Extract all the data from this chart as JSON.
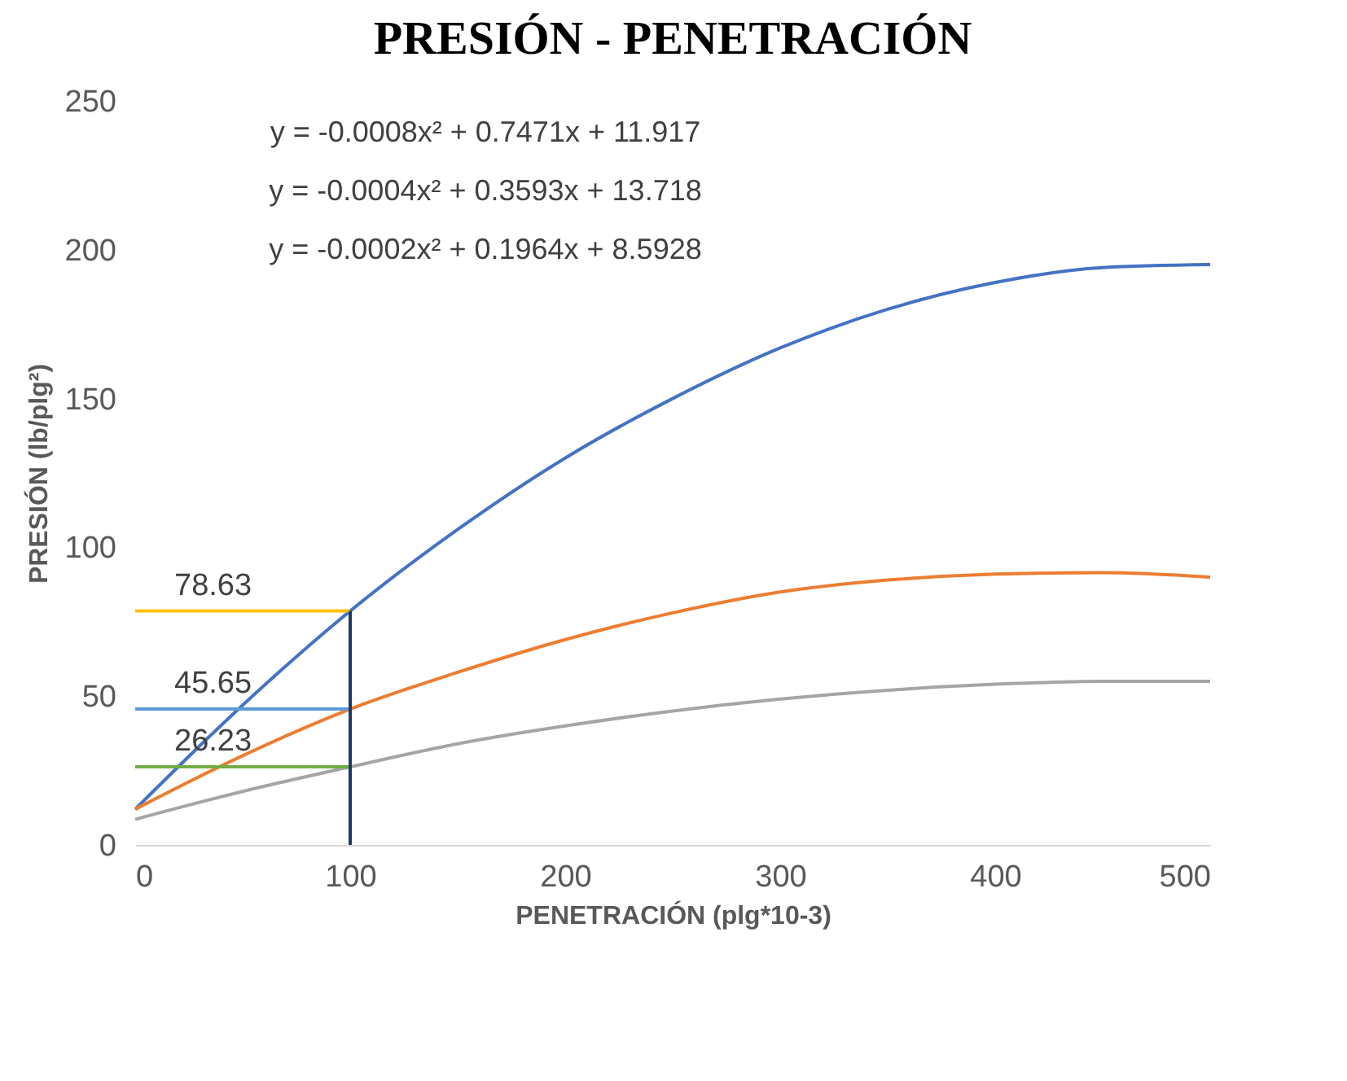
{
  "chart_data": {
    "type": "line",
    "title": "PRESIÓN - PENETRACIÓN",
    "xlabel": "PENETRACIÓN (plg*10-3)",
    "ylabel": "PRESIÓN (lb/plg²)",
    "xlim": [
      0,
      500
    ],
    "xticks": [
      0,
      100,
      200,
      300,
      400,
      500
    ],
    "ylim": [
      0,
      250
    ],
    "yticks": [
      0,
      50,
      100,
      150,
      200,
      250
    ],
    "marker": "none",
    "line_style": "solid",
    "annotations": [
      "y = -0.0008x² + 0.7471x + 11.917",
      "y = -0.0004x² + 0.3593x + 13.718",
      "y = -0.0002x² + 0.1964x + 8.5928"
    ],
    "series": [
      {
        "color": "#4472c4",
        "x": [
          0,
          50,
          100,
          150,
          200,
          250,
          300,
          350,
          400,
          450,
          500
        ],
        "values": [
          12,
          47,
          78.6,
          106,
          130,
          150,
          167,
          180,
          189,
          194,
          195
        ]
      },
      {
        "color": "#ed7d31",
        "x": [
          0,
          50,
          100,
          150,
          200,
          250,
          300,
          350,
          400,
          450,
          500
        ],
        "values": [
          12,
          30,
          45.65,
          58,
          69,
          78,
          85,
          89,
          91,
          91.5,
          90
        ]
      },
      {
        "color": "#a5a5a5",
        "x": [
          0,
          50,
          100,
          150,
          200,
          250,
          300,
          350,
          400,
          450,
          500
        ],
        "values": [
          8.6,
          18,
          26.23,
          34,
          40,
          45,
          49,
          52,
          54,
          55,
          55
        ]
      },
      {
        "color": "#ffc000",
        "x": [
          0,
          100
        ],
        "values": [
          78.63,
          78.63
        ],
        "value_labels": [
          "78.63",
          null
        ]
      },
      {
        "color": "#5b9bd5",
        "x": [
          0,
          100
        ],
        "values": [
          45.65,
          45.65
        ],
        "value_labels": [
          "45.65",
          null
        ]
      },
      {
        "color": "#70ad47",
        "x": [
          0,
          100
        ],
        "values": [
          26.23,
          26.23
        ],
        "value_labels": [
          "26.23",
          null
        ]
      },
      {
        "color": "#203864",
        "x": [
          100,
          100
        ],
        "values": [
          0,
          78.63
        ]
      }
    ]
  }
}
